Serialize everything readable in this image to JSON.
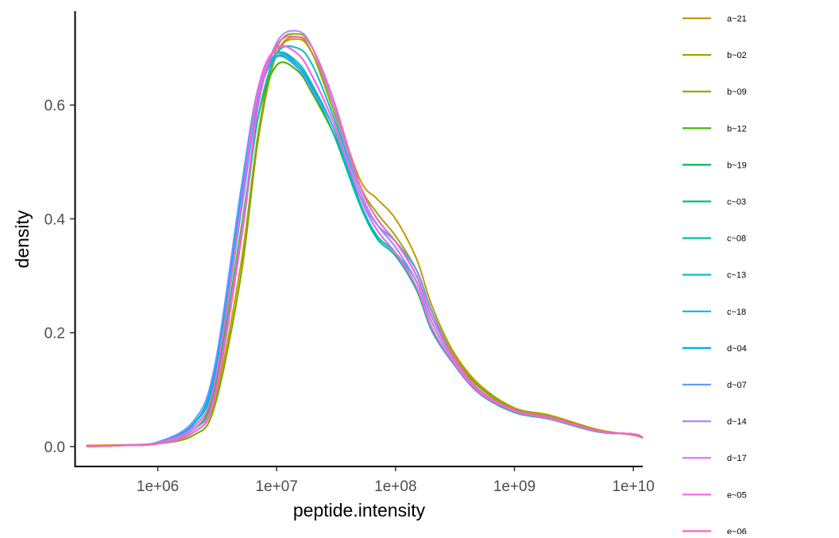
{
  "chart_data": {
    "type": "line",
    "title": "",
    "xlabel": "peptide.intensity",
    "ylabel": "density",
    "x_scale": "log10",
    "x_ticks": [
      1000000,
      10000000,
      100000000,
      1000000000,
      10000000000
    ],
    "x_tick_labels": [
      "1e+06",
      "1e+07",
      "1e+08",
      "1e+09",
      "1e+10"
    ],
    "xlim": [
      200000,
      12000000000
    ],
    "y_ticks": [
      0.0,
      0.2,
      0.4,
      0.6
    ],
    "y_tick_labels": [
      "0.0",
      "0.2",
      "0.4",
      "0.6"
    ],
    "ylim": [
      -0.035,
      0.765
    ],
    "grid": false,
    "legend_position": "right",
    "x": [
      250000,
      500000,
      1000000,
      2000000,
      3000000,
      5000000,
      7000000,
      10000000,
      15000000,
      20000000,
      30000000,
      50000000,
      70000000,
      100000000,
      150000000,
      200000000,
      300000000,
      500000000,
      1000000000,
      2000000000,
      5000000000,
      10000000000,
      12000000000
    ],
    "series": [
      {
        "name": "a~21",
        "color": "#C49A00",
        "values": [
          0.002,
          0.003,
          0.006,
          0.025,
          0.08,
          0.32,
          0.55,
          0.69,
          0.716,
          0.69,
          0.6,
          0.47,
          0.435,
          0.4,
          0.33,
          0.25,
          0.17,
          0.11,
          0.068,
          0.055,
          0.03,
          0.02,
          0.015
        ]
      },
      {
        "name": "b~02",
        "color": "#A3A500",
        "values": [
          0.0,
          0.002,
          0.005,
          0.02,
          0.07,
          0.3,
          0.54,
          0.69,
          0.72,
          0.69,
          0.59,
          0.46,
          0.41,
          0.37,
          0.31,
          0.24,
          0.165,
          0.108,
          0.066,
          0.053,
          0.029,
          0.021,
          0.016
        ]
      },
      {
        "name": "b~09",
        "color": "#7CAE00",
        "values": [
          0.0,
          0.002,
          0.005,
          0.02,
          0.07,
          0.3,
          0.55,
          0.7,
          0.725,
          0.7,
          0.6,
          0.46,
          0.4,
          0.36,
          0.3,
          0.23,
          0.16,
          0.105,
          0.065,
          0.052,
          0.028,
          0.021,
          0.016
        ]
      },
      {
        "name": "b~12",
        "color": "#39B600",
        "values": [
          0.0,
          0.002,
          0.006,
          0.03,
          0.1,
          0.38,
          0.58,
          0.67,
          0.66,
          0.62,
          0.55,
          0.44,
          0.39,
          0.35,
          0.29,
          0.22,
          0.155,
          0.1,
          0.063,
          0.05,
          0.027,
          0.022,
          0.016
        ]
      },
      {
        "name": "b~19",
        "color": "#00BB4E",
        "values": [
          0.0,
          0.002,
          0.007,
          0.04,
          0.13,
          0.44,
          0.62,
          0.69,
          0.67,
          0.63,
          0.56,
          0.43,
          0.37,
          0.34,
          0.28,
          0.21,
          0.15,
          0.095,
          0.061,
          0.048,
          0.026,
          0.022,
          0.016
        ]
      },
      {
        "name": "c~03",
        "color": "#00BF7D",
        "values": [
          0.0,
          0.002,
          0.007,
          0.04,
          0.13,
          0.45,
          0.63,
          0.685,
          0.665,
          0.625,
          0.55,
          0.425,
          0.365,
          0.335,
          0.275,
          0.205,
          0.148,
          0.094,
          0.06,
          0.048,
          0.026,
          0.022,
          0.016
        ]
      },
      {
        "name": "c~08",
        "color": "#00C1A3",
        "values": [
          0.0,
          0.002,
          0.007,
          0.04,
          0.12,
          0.43,
          0.62,
          0.69,
          0.675,
          0.635,
          0.56,
          0.43,
          0.37,
          0.34,
          0.28,
          0.21,
          0.15,
          0.095,
          0.061,
          0.048,
          0.026,
          0.022,
          0.016
        ]
      },
      {
        "name": "c~13",
        "color": "#00BFC4",
        "values": [
          0.0,
          0.002,
          0.006,
          0.03,
          0.09,
          0.36,
          0.58,
          0.69,
          0.7,
          0.67,
          0.58,
          0.45,
          0.39,
          0.36,
          0.3,
          0.23,
          0.16,
          0.1,
          0.064,
          0.051,
          0.027,
          0.022,
          0.016
        ]
      },
      {
        "name": "c~18",
        "color": "#00B9E3",
        "values": [
          0.0,
          0.002,
          0.006,
          0.035,
          0.11,
          0.41,
          0.61,
          0.685,
          0.67,
          0.63,
          0.56,
          0.43,
          0.37,
          0.34,
          0.29,
          0.22,
          0.155,
          0.098,
          0.062,
          0.049,
          0.027,
          0.022,
          0.016
        ]
      },
      {
        "name": "d~04",
        "color": "#00ADFA",
        "values": [
          0.0,
          0.002,
          0.007,
          0.04,
          0.13,
          0.44,
          0.62,
          0.69,
          0.67,
          0.63,
          0.56,
          0.44,
          0.39,
          0.36,
          0.31,
          0.24,
          0.16,
          0.1,
          0.063,
          0.05,
          0.027,
          0.022,
          0.016
        ]
      },
      {
        "name": "d~07",
        "color": "#619CFF",
        "values": [
          0.0,
          0.002,
          0.008,
          0.045,
          0.14,
          0.45,
          0.63,
          0.69,
          0.665,
          0.625,
          0.56,
          0.44,
          0.39,
          0.36,
          0.31,
          0.24,
          0.16,
          0.1,
          0.063,
          0.05,
          0.027,
          0.022,
          0.016
        ]
      },
      {
        "name": "d~14",
        "color": "#AE87FF",
        "values": [
          0.0,
          0.002,
          0.006,
          0.03,
          0.09,
          0.37,
          0.6,
          0.71,
          0.73,
          0.7,
          0.6,
          0.45,
          0.39,
          0.35,
          0.29,
          0.22,
          0.155,
          0.1,
          0.064,
          0.05,
          0.027,
          0.022,
          0.016
        ]
      },
      {
        "name": "d~17",
        "color": "#DB72FB",
        "values": [
          0.0,
          0.002,
          0.006,
          0.035,
          0.11,
          0.42,
          0.62,
          0.7,
          0.69,
          0.65,
          0.57,
          0.44,
          0.38,
          0.34,
          0.28,
          0.21,
          0.15,
          0.096,
          0.062,
          0.049,
          0.027,
          0.022,
          0.016
        ]
      },
      {
        "name": "e~05",
        "color": "#F564E3",
        "values": [
          0.0,
          0.002,
          0.006,
          0.035,
          0.11,
          0.42,
          0.63,
          0.7,
          0.69,
          0.65,
          0.57,
          0.44,
          0.38,
          0.34,
          0.28,
          0.21,
          0.15,
          0.096,
          0.062,
          0.049,
          0.027,
          0.022,
          0.016
        ]
      },
      {
        "name": "e~06",
        "color": "#FF61C3",
        "values": [
          0.0,
          0.002,
          0.005,
          0.025,
          0.085,
          0.36,
          0.6,
          0.705,
          0.72,
          0.7,
          0.61,
          0.46,
          0.4,
          0.36,
          0.3,
          0.23,
          0.16,
          0.1,
          0.064,
          0.051,
          0.028,
          0.021,
          0.016
        ]
      }
    ]
  }
}
